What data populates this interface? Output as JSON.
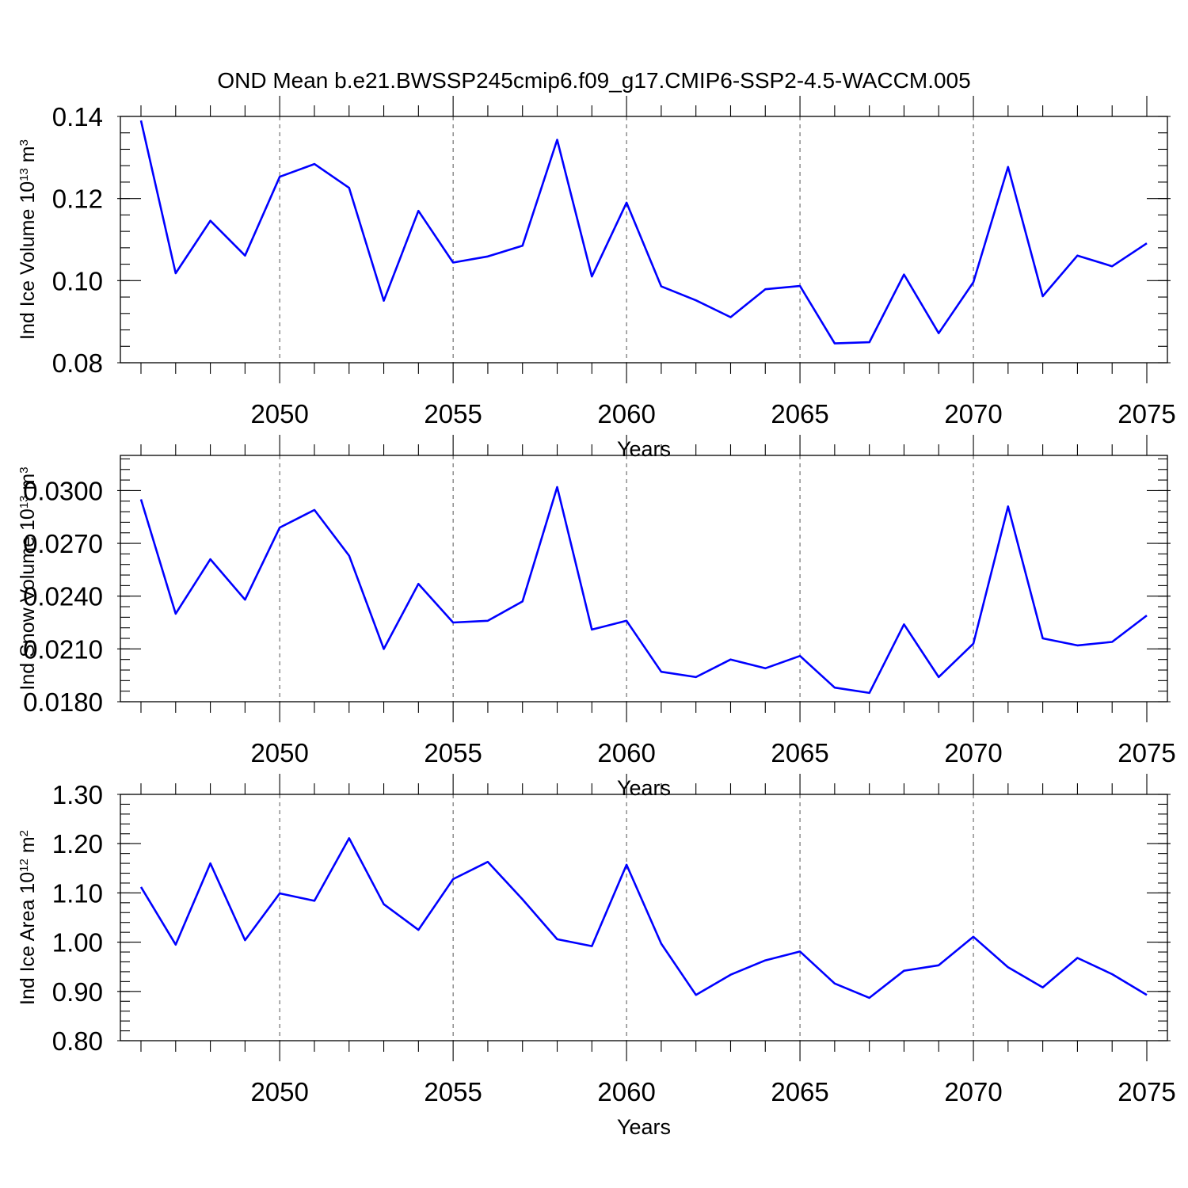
{
  "chart_title": "OND Mean b.e21.BWSSP245cmip6.f09_g17.CMIP6-SSP2-4.5-WACCM.005",
  "colors": {
    "line": "#0000ff",
    "axis": "#000000",
    "grid": "#555555"
  },
  "chart_data": [
    {
      "type": "line",
      "title": "OND Mean b.e21.BWSSP245cmip6.f09_g17.CMIP6-SSP2-4.5-WACCM.005",
      "xlabel": "Years",
      "ylabel": "Ind Ice Volume 10",
      "ylabel_exp": "13",
      "ylabel_unit": " m",
      "ylabel_unit_exp": "3",
      "xlim": [
        2046,
        2075
      ],
      "ylim": [
        0.08,
        0.14
      ],
      "xticks": [
        2050,
        2055,
        2060,
        2065,
        2070,
        2075
      ],
      "xtick_labels": [
        "2050",
        "2055",
        "2060",
        "2065",
        "2070",
        "2075"
      ],
      "yticks": [
        0.08,
        0.1,
        0.12,
        0.14
      ],
      "ytick_labels": [
        "0.08",
        "0.10",
        "0.12",
        "0.14"
      ],
      "yminor_step": 0.004,
      "grid": "x-dashed",
      "x": [
        2046,
        2047,
        2048,
        2049,
        2050,
        2051,
        2052,
        2053,
        2054,
        2055,
        2056,
        2057,
        2058,
        2059,
        2060,
        2061,
        2062,
        2063,
        2064,
        2065,
        2066,
        2067,
        2068,
        2069,
        2070,
        2071,
        2072,
        2073,
        2074,
        2075
      ],
      "values": [
        0.139,
        0.1018,
        0.1146,
        0.1061,
        0.1253,
        0.1284,
        0.1226,
        0.0951,
        0.117,
        0.1044,
        0.1059,
        0.1085,
        0.1343,
        0.101,
        0.119,
        0.0986,
        0.0952,
        0.0911,
        0.0979,
        0.0987,
        0.0847,
        0.085,
        0.1015,
        0.0872,
        0.0996,
        0.1277,
        0.0962,
        0.1061,
        0.1035,
        0.1091
      ]
    },
    {
      "type": "line",
      "xlabel": "Years",
      "ylabel": "Ind Snow Volume 10",
      "ylabel_exp": "13",
      "ylabel_unit": " m",
      "ylabel_unit_exp": "3",
      "xlim": [
        2046,
        2075
      ],
      "ylim": [
        0.018,
        0.032
      ],
      "xticks": [
        2050,
        2055,
        2060,
        2065,
        2070,
        2075
      ],
      "xtick_labels": [
        "2050",
        "2055",
        "2060",
        "2065",
        "2070",
        "2075"
      ],
      "yticks": [
        0.018,
        0.021,
        0.024,
        0.027,
        0.03
      ],
      "ytick_labels": [
        "0.0180",
        "0.0210",
        "0.0240",
        "0.0270",
        "0.0300"
      ],
      "yminor_step": 0.0006,
      "grid": "x-dashed",
      "x": [
        2046,
        2047,
        2048,
        2049,
        2050,
        2051,
        2052,
        2053,
        2054,
        2055,
        2056,
        2057,
        2058,
        2059,
        2060,
        2061,
        2062,
        2063,
        2064,
        2065,
        2066,
        2067,
        2068,
        2069,
        2070,
        2071,
        2072,
        2073,
        2074,
        2075
      ],
      "values": [
        0.0295,
        0.023,
        0.0261,
        0.0238,
        0.0279,
        0.0289,
        0.0263,
        0.021,
        0.0247,
        0.0225,
        0.0226,
        0.0237,
        0.0302,
        0.0221,
        0.0226,
        0.0197,
        0.0194,
        0.0204,
        0.0199,
        0.0206,
        0.0188,
        0.0185,
        0.0224,
        0.0194,
        0.0213,
        0.0291,
        0.0216,
        0.0212,
        0.0214,
        0.0229
      ]
    },
    {
      "type": "line",
      "xlabel": "Years",
      "ylabel": "Ind Ice Area 10",
      "ylabel_exp": "12",
      "ylabel_unit": " m",
      "ylabel_unit_exp": "2",
      "xlim": [
        2046,
        2075
      ],
      "ylim": [
        0.8,
        1.3
      ],
      "xticks": [
        2050,
        2055,
        2060,
        2065,
        2070,
        2075
      ],
      "xtick_labels": [
        "2050",
        "2055",
        "2060",
        "2065",
        "2070",
        "2075"
      ],
      "yticks": [
        0.8,
        0.9,
        1.0,
        1.1,
        1.2,
        1.3
      ],
      "ytick_labels": [
        "0.80",
        "0.90",
        "1.00",
        "1.10",
        "1.20",
        "1.30"
      ],
      "yminor_step": 0.02,
      "grid": "x-dashed",
      "x": [
        2046,
        2047,
        2048,
        2049,
        2050,
        2051,
        2052,
        2053,
        2054,
        2055,
        2056,
        2057,
        2058,
        2059,
        2060,
        2061,
        2062,
        2063,
        2064,
        2065,
        2066,
        2067,
        2068,
        2069,
        2070,
        2071,
        2072,
        2073,
        2074,
        2075
      ],
      "values": [
        1.112,
        0.995,
        1.16,
        1.004,
        1.099,
        1.084,
        1.211,
        1.077,
        1.025,
        1.128,
        1.163,
        1.087,
        1.006,
        0.992,
        1.157,
        0.997,
        0.893,
        0.934,
        0.963,
        0.981,
        0.916,
        0.887,
        0.942,
        0.953,
        1.011,
        0.949,
        0.908,
        0.968,
        0.935,
        0.893
      ]
    }
  ]
}
